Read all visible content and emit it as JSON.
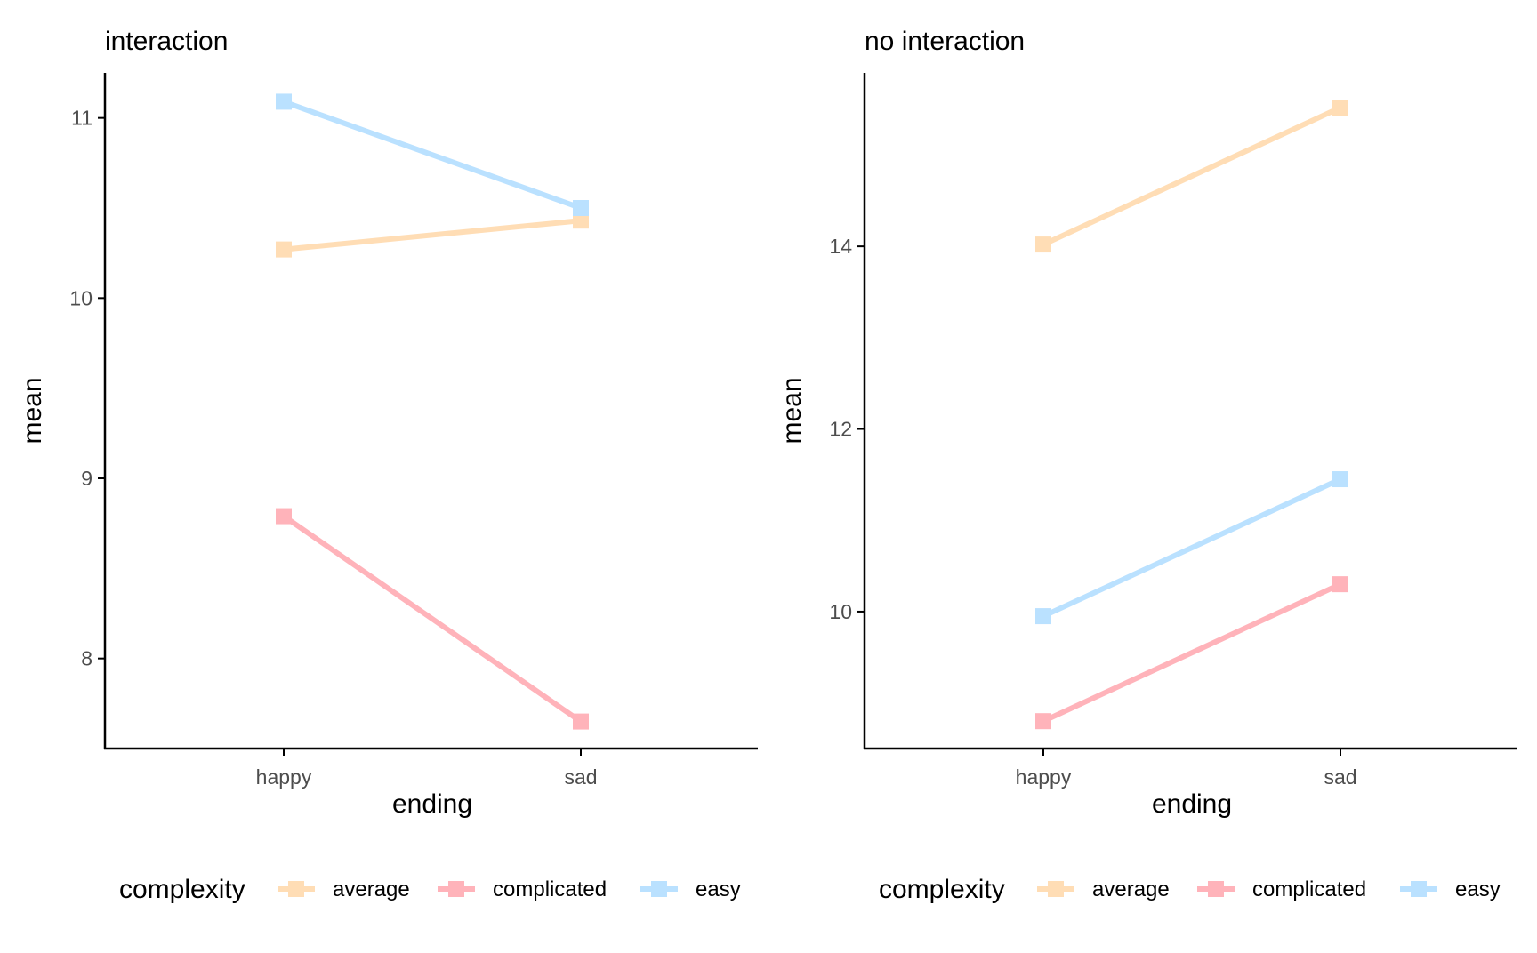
{
  "colors": {
    "average": "#FFDDB5",
    "complicated": "#FFB3BA",
    "easy": "#BAE1FF",
    "axis": "#000000",
    "tick_text": "#4d4d4d"
  },
  "chart_data": [
    {
      "type": "line",
      "title": "interaction",
      "xlabel": "ending",
      "ylabel": "mean",
      "categories": [
        "happy",
        "sad"
      ],
      "ylim": [
        7.5,
        11.25
      ],
      "yticks": [
        8,
        9,
        10,
        11
      ],
      "grid": false,
      "legend": {
        "position": "bottom",
        "title": "complexity",
        "labels": [
          "average",
          "complicated",
          "easy"
        ]
      },
      "series": [
        {
          "name": "average",
          "values": [
            10.27,
            10.43
          ]
        },
        {
          "name": "complicated",
          "values": [
            8.79,
            7.65
          ]
        },
        {
          "name": "easy",
          "values": [
            11.09,
            10.5
          ]
        }
      ]
    },
    {
      "type": "line",
      "title": "no interaction",
      "xlabel": "ending",
      "ylabel": "mean",
      "categories": [
        "happy",
        "sad"
      ],
      "ylim": [
        8.5,
        15.9
      ],
      "yticks": [
        10,
        12,
        14
      ],
      "grid": false,
      "legend": {
        "position": "bottom",
        "title": "complexity",
        "labels": [
          "average",
          "complicated",
          "easy"
        ]
      },
      "series": [
        {
          "name": "average",
          "values": [
            14.02,
            15.52
          ]
        },
        {
          "name": "complicated",
          "values": [
            8.8,
            10.3
          ]
        },
        {
          "name": "easy",
          "values": [
            9.95,
            11.45
          ]
        }
      ]
    }
  ]
}
